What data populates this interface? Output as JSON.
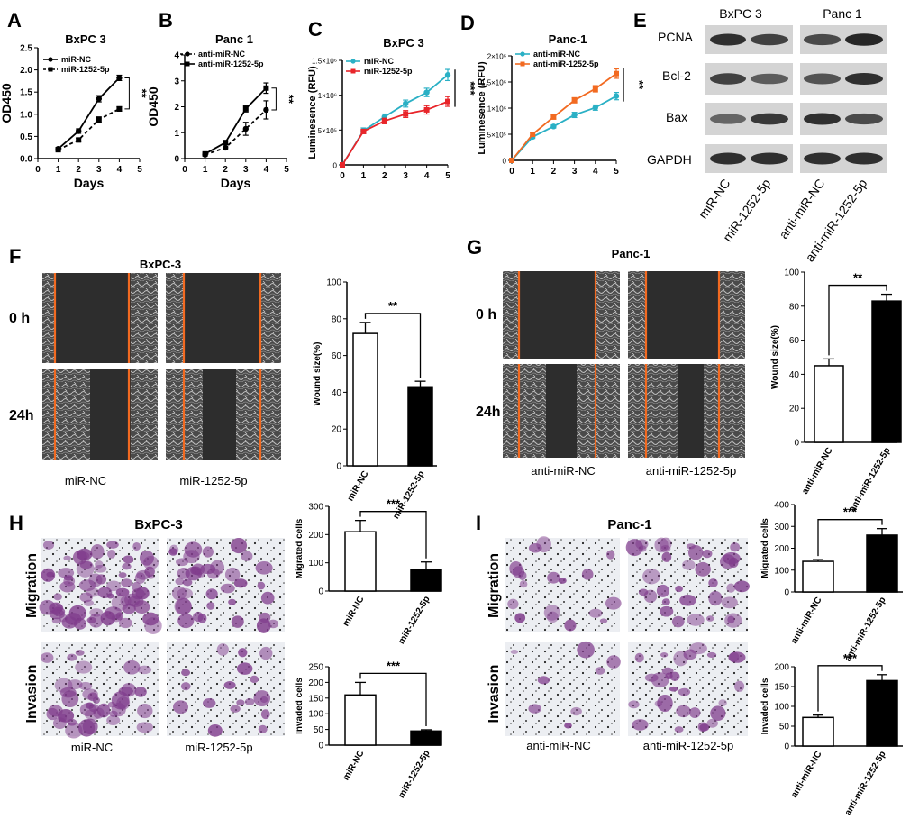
{
  "panels": {
    "A": {
      "letter": "A"
    },
    "B": {
      "letter": "B"
    },
    "C": {
      "letter": "C"
    },
    "D": {
      "letter": "D"
    },
    "E": {
      "letter": "E"
    },
    "F": {
      "letter": "F"
    },
    "G": {
      "letter": "G"
    },
    "H": {
      "letter": "H"
    },
    "I": {
      "letter": "I"
    }
  },
  "western_blot": {
    "cell_lines": [
      "BxPC 3",
      "Panc 1"
    ],
    "proteins": [
      "PCNA",
      "Bcl-2",
      "Bax",
      "GAPDH"
    ],
    "lanes": [
      "miR-NC",
      "miR-1252-5p",
      "anti-miR-NC",
      "anti-miR-1252-5p"
    ],
    "intensity": {
      "PCNA": [
        0.85,
        0.75,
        0.7,
        0.9
      ],
      "Bcl-2": [
        0.75,
        0.6,
        0.65,
        0.85
      ],
      "Bax": [
        0.55,
        0.8,
        0.85,
        0.7
      ],
      "GAPDH": [
        0.85,
        0.85,
        0.85,
        0.85
      ]
    }
  },
  "wound": {
    "F": {
      "title": "BxPC-3",
      "row_labels": [
        "0 h",
        "24h"
      ],
      "captions": [
        "miR-NC",
        "miR-1252-5p"
      ]
    },
    "G": {
      "title": "Panc-1",
      "row_labels": [
        "0 h",
        "24h"
      ],
      "captions": [
        "anti-miR-NC",
        "anti-miR-1252-5p"
      ]
    }
  },
  "transwell": {
    "H": {
      "title": "BxPC-3",
      "row_labels": [
        "Migration",
        "Invasion"
      ],
      "captions": [
        "miR-NC",
        "miR-1252-5p"
      ]
    },
    "I": {
      "title": "Panc-1",
      "row_labels": [
        "Migration",
        "Invasion"
      ],
      "captions": [
        "anti-miR-NC",
        "anti-miR-1252-5p"
      ]
    }
  },
  "chart_data": [
    {
      "id": "A",
      "type": "line",
      "title": "BxPC 3",
      "xlabel": "Days",
      "ylabel": "OD450",
      "xlim": [
        0,
        5
      ],
      "ylim": [
        0,
        2.5
      ],
      "xticks": [
        0,
        1,
        2,
        3,
        4,
        5
      ],
      "yticks": [
        0,
        0.5,
        1.0,
        1.5,
        2.0,
        2.5
      ],
      "ytick_labels": [
        "0.0",
        "0.5",
        "1.0",
        "1.5",
        "2.0",
        "2.5"
      ],
      "legend": "top-left",
      "significance": "**",
      "series": [
        {
          "name": "miR-NC",
          "x": [
            1,
            2,
            3,
            4
          ],
          "y": [
            0.22,
            0.62,
            1.35,
            1.82
          ],
          "err": [
            0.03,
            0.05,
            0.07,
            0.06
          ],
          "color": "#000000",
          "dash": false,
          "marker": "circle"
        },
        {
          "name": "miR-1252-5p",
          "x": [
            1,
            2,
            3,
            4
          ],
          "y": [
            0.2,
            0.42,
            0.88,
            1.12
          ],
          "err": [
            0.03,
            0.04,
            0.06,
            0.05
          ],
          "color": "#000000",
          "dash": true,
          "marker": "square"
        }
      ]
    },
    {
      "id": "B",
      "type": "line",
      "title": "Panc 1",
      "xlabel": "Days",
      "ylabel": "OD450",
      "xlim": [
        0,
        5
      ],
      "ylim": [
        0,
        4
      ],
      "xticks": [
        0,
        1,
        2,
        3,
        4,
        5
      ],
      "yticks": [
        0,
        1,
        2,
        3,
        4
      ],
      "ytick_labels": [
        "0",
        "1",
        "2",
        "3",
        "4"
      ],
      "legend": "top-left",
      "significance": "**",
      "series": [
        {
          "name": "anti-miR-NC",
          "x": [
            1,
            2,
            3,
            4
          ],
          "y": [
            0.15,
            0.42,
            1.15,
            1.88
          ],
          "err": [
            0.03,
            0.05,
            0.25,
            0.35
          ],
          "color": "#000000",
          "dash": true,
          "marker": "circle"
        },
        {
          "name": "anti-miR-1252-5p",
          "x": [
            1,
            2,
            3,
            4
          ],
          "y": [
            0.18,
            0.62,
            1.92,
            2.72
          ],
          "err": [
            0.03,
            0.05,
            0.12,
            0.2
          ],
          "color": "#000000",
          "dash": false,
          "marker": "square"
        }
      ]
    },
    {
      "id": "C",
      "type": "line",
      "title": "BxPC 3",
      "xlabel": "",
      "ylabel": "Luminesence (RFU)",
      "xlim": [
        0,
        5
      ],
      "ylim": [
        0,
        1500000
      ],
      "xticks": [
        0,
        1,
        2,
        3,
        4,
        5
      ],
      "yticks": [
        0,
        500000,
        1000000,
        1500000
      ],
      "ytick_labels": [
        "0",
        "5×10⁵",
        "1×10⁶",
        "1.5×10⁶"
      ],
      "legend": "top-left",
      "significance": "***",
      "series": [
        {
          "name": "miR-NC",
          "x": [
            0,
            1,
            2,
            3,
            4,
            5
          ],
          "y": [
            0,
            490000,
            690000,
            880000,
            1040000,
            1290000
          ],
          "err": [
            0,
            40000,
            40000,
            50000,
            60000,
            80000
          ],
          "color": "#2ab0c5",
          "dash": false,
          "marker": "circle"
        },
        {
          "name": "miR-1252-5p",
          "x": [
            0,
            1,
            2,
            3,
            4,
            5
          ],
          "y": [
            0,
            480000,
            630000,
            730000,
            790000,
            910000
          ],
          "err": [
            0,
            30000,
            40000,
            50000,
            60000,
            70000
          ],
          "color": "#e8252a",
          "dash": false,
          "marker": "square"
        }
      ]
    },
    {
      "id": "D",
      "type": "line",
      "title": "Panc-1",
      "xlabel": "",
      "ylabel": "Luminesence (RFU)",
      "xlim": [
        0,
        5
      ],
      "ylim": [
        0,
        2000000
      ],
      "xticks": [
        0,
        1,
        2,
        3,
        4,
        5
      ],
      "yticks": [
        0,
        500000,
        1000000,
        1500000,
        2000000
      ],
      "ytick_labels": [
        "0",
        "5×10⁵",
        "1×10⁶",
        "1.5×10⁶",
        "2×10⁶"
      ],
      "legend": "top-left",
      "significance": "**",
      "series": [
        {
          "name": "anti-miR-NC",
          "x": [
            0,
            1,
            2,
            3,
            4,
            5
          ],
          "y": [
            0,
            450000,
            650000,
            870000,
            1010000,
            1230000
          ],
          "err": [
            0,
            30000,
            30000,
            50000,
            50000,
            70000
          ],
          "color": "#2ab0c5",
          "dash": false,
          "marker": "circle"
        },
        {
          "name": "anti-miR-1252-5p",
          "x": [
            0,
            1,
            2,
            3,
            4,
            5
          ],
          "y": [
            0,
            500000,
            830000,
            1150000,
            1370000,
            1660000
          ],
          "err": [
            0,
            30000,
            40000,
            50000,
            60000,
            90000
          ],
          "color": "#f26a21",
          "dash": false,
          "marker": "square"
        }
      ]
    },
    {
      "id": "F",
      "type": "bar",
      "categories": [
        "miR-NC",
        "miR-1252-5p"
      ],
      "values": [
        72,
        43
      ],
      "err": [
        6,
        3
      ],
      "ylabel": "Wound size(%)",
      "ylim": [
        0,
        100
      ],
      "yticks": [
        0,
        20,
        40,
        60,
        80,
        100
      ],
      "fills": [
        "#ffffff",
        "#000000"
      ],
      "significance": "**"
    },
    {
      "id": "G",
      "type": "bar",
      "categories": [
        "anti-miR-NC",
        "anti-miR-1252-5p"
      ],
      "values": [
        45,
        83
      ],
      "err": [
        4,
        4
      ],
      "ylabel": "Wound size(%)",
      "ylim": [
        0,
        100
      ],
      "yticks": [
        0,
        20,
        40,
        60,
        80,
        100
      ],
      "fills": [
        "#ffffff",
        "#000000"
      ],
      "significance": "**"
    },
    {
      "id": "H-mig",
      "type": "bar",
      "categories": [
        "miR-NC",
        "miR-1252-5p"
      ],
      "values": [
        210,
        75
      ],
      "err": [
        40,
        28
      ],
      "ylabel": "Migrated cells",
      "ylim": [
        0,
        300
      ],
      "yticks": [
        0,
        100,
        200,
        300
      ],
      "fills": [
        "#ffffff",
        "#000000"
      ],
      "significance": "***"
    },
    {
      "id": "H-inv",
      "type": "bar",
      "categories": [
        "miR-NC",
        "miR-1252-5p"
      ],
      "values": [
        160,
        45
      ],
      "err": [
        40,
        4
      ],
      "ylabel": "Invaded cells",
      "ylim": [
        0,
        250
      ],
      "yticks": [
        0,
        50,
        100,
        150,
        200,
        250
      ],
      "fills": [
        "#ffffff",
        "#000000"
      ],
      "significance": "***"
    },
    {
      "id": "I-mig",
      "type": "bar",
      "categories": [
        "anti-miR-NC",
        "anti-miR-1252-5p"
      ],
      "values": [
        140,
        260
      ],
      "err": [
        8,
        30
      ],
      "ylabel": "Migrated cells",
      "ylim": [
        0,
        400
      ],
      "yticks": [
        0,
        100,
        200,
        300,
        400
      ],
      "fills": [
        "#ffffff",
        "#000000"
      ],
      "significance": "***"
    },
    {
      "id": "I-inv",
      "type": "bar",
      "categories": [
        "anti-miR-NC",
        "anti-miR-1252-5p"
      ],
      "values": [
        72,
        165
      ],
      "err": [
        6,
        15
      ],
      "ylabel": "Invaded cells",
      "ylim": [
        0,
        200
      ],
      "yticks": [
        0,
        50,
        100,
        150,
        200
      ],
      "fills": [
        "#ffffff",
        "#000000"
      ],
      "significance": "***"
    }
  ]
}
